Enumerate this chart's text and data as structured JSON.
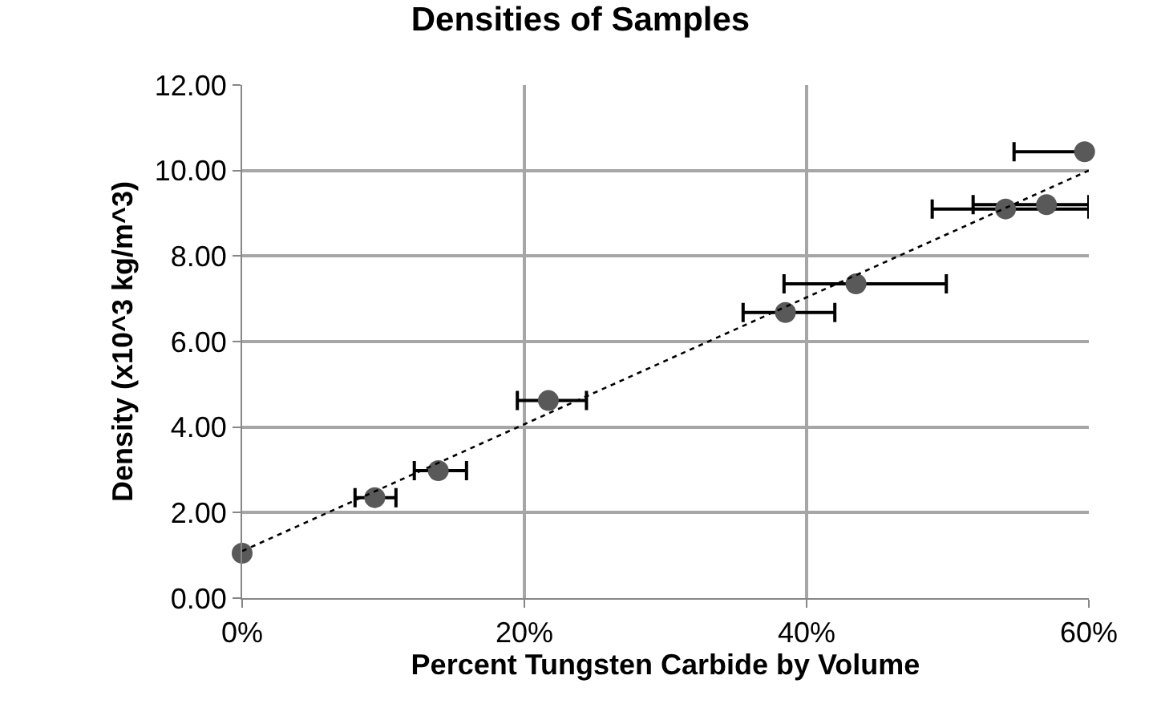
{
  "chart_data": {
    "type": "scatter",
    "title": "Densities of Samples",
    "xlabel": "Percent Tungsten Carbide by Volume",
    "ylabel": "Density (x10^3 kg/m^3)",
    "xlim": [
      0,
      60
    ],
    "xticks": [
      {
        "value": 0,
        "label": "0%"
      },
      {
        "value": 20,
        "label": "20%"
      },
      {
        "value": 40,
        "label": "40%"
      },
      {
        "value": 60,
        "label": "60%"
      }
    ],
    "ylim": [
      0,
      12
    ],
    "yticks": [
      {
        "value": 0,
        "label": "0.00"
      },
      {
        "value": 2,
        "label": "2.00"
      },
      {
        "value": 4,
        "label": "4.00"
      },
      {
        "value": 6,
        "label": "6.00"
      },
      {
        "value": 8,
        "label": "8.00"
      },
      {
        "value": 10,
        "label": "10.00"
      },
      {
        "value": 12,
        "label": "12.00"
      }
    ],
    "grid": true,
    "marker": "circle",
    "series": [
      {
        "color": "#595959",
        "x": [
          0,
          9.4,
          13.9,
          21.7,
          38.5,
          43.5,
          54.1,
          57.0,
          59.7
        ],
        "values": [
          1.05,
          2.35,
          2.98,
          4.62,
          6.68,
          7.35,
          9.1,
          9.2,
          10.44
        ],
        "xerrors": [
          null,
          [
            8.0,
            10.9
          ],
          [
            12.2,
            15.9
          ],
          [
            19.5,
            24.4
          ],
          [
            35.5,
            42.0
          ],
          [
            38.4,
            49.9
          ],
          [
            48.9,
            60
          ],
          [
            51.8,
            60
          ],
          [
            54.7,
            59.7
          ]
        ]
      },
      {
        "type": "line",
        "color": "#000000",
        "line_style": "dotted",
        "marker": "none",
        "x": [
          0,
          60
        ],
        "values": [
          1.1,
          10.0
        ]
      }
    ]
  }
}
